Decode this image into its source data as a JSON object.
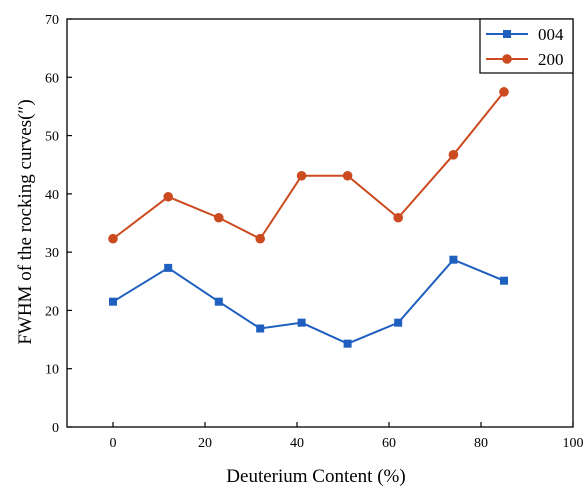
{
  "chart_data": {
    "type": "line",
    "title": "",
    "xlabel": "Deuterium Content (%)",
    "ylabel": "FWHM of the rocking curves(″)",
    "xlim": [
      -10,
      100
    ],
    "ylim": [
      0,
      70
    ],
    "xticks": [
      0,
      20,
      40,
      60,
      80,
      100
    ],
    "yticks": [
      0,
      10,
      20,
      30,
      40,
      50,
      60,
      70
    ],
    "grid": false,
    "legend_position": "top-right",
    "series": [
      {
        "name": "004",
        "marker": "square",
        "color": "#1f5fbf",
        "x": [
          0,
          12,
          23,
          32,
          41,
          51,
          62,
          74,
          85
        ],
        "y": [
          21.5,
          27.3,
          21.5,
          16.9,
          17.9,
          14.3,
          17.9,
          28.7,
          25.1
        ]
      },
      {
        "name": "200",
        "marker": "circle",
        "color": "#cc4a1f",
        "x": [
          0,
          12,
          23,
          32,
          41,
          51,
          62,
          74,
          85
        ],
        "y": [
          32.3,
          39.5,
          35.9,
          32.3,
          43.1,
          43.1,
          35.9,
          46.7,
          57.5
        ]
      }
    ]
  }
}
